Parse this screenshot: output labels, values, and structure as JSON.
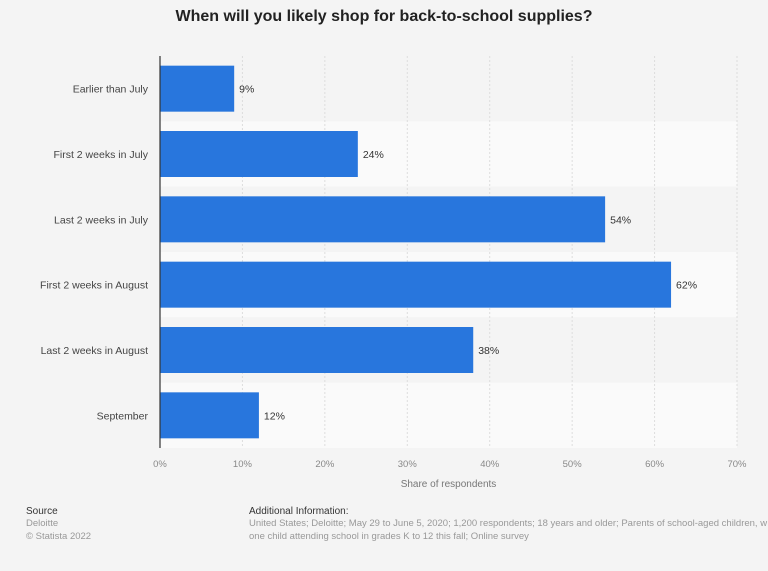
{
  "chart_data": {
    "type": "bar",
    "orientation": "horizontal",
    "title": "When will you likely shop for back-to-school supplies?",
    "categories": [
      "Earlier than July",
      "First 2 weeks in July",
      "Last 2 weeks in July",
      "First 2 weeks in August",
      "Last 2 weeks in August",
      "September"
    ],
    "values": [
      9,
      24,
      54,
      62,
      38,
      12
    ],
    "value_labels": [
      "9%",
      "24%",
      "54%",
      "62%",
      "38%",
      "12%"
    ],
    "xlabel": "Share of respondents",
    "xlim": [
      0,
      70
    ],
    "xticks": [
      "0%",
      "10%",
      "20%",
      "30%",
      "40%",
      "50%",
      "60%",
      "70%"
    ],
    "grid": true,
    "bar_color": "#2876dd"
  },
  "footer": {
    "source_heading": "Source",
    "source_lines": [
      "Deloitte",
      "© Statista 2022"
    ],
    "info_heading": "Additional Information:",
    "info_lines": [
      "United States; Deloitte; May 29 to June 5, 2020; 1,200 respondents; 18 years and older; Parents of school-aged children, w",
      "one child attending school in grades K to 12 this fall; Online survey"
    ]
  }
}
